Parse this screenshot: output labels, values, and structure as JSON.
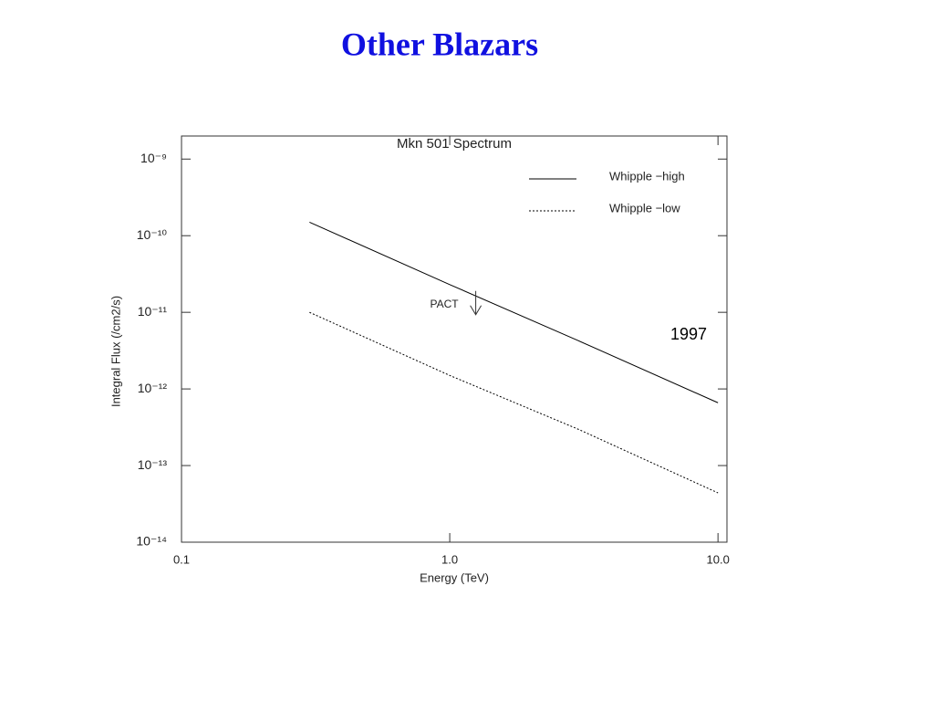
{
  "page_title": "Other Blazars",
  "chart_data": {
    "type": "line",
    "title": "Mkn 501 Spectrum",
    "x_label": "Energy (TeV)",
    "y_label": "Integral Flux (/cm2/s)",
    "log_x": true,
    "log_y": true,
    "legend": "upper right",
    "x": [
      0.3,
      1,
      3,
      10
    ],
    "series": [
      {
        "name": "Whipple −high",
        "color": "#000000",
        "style": "solid",
        "values": [
          1.5e-10,
          2.3e-11,
          4.3e-12,
          6.6e-13
        ]
      },
      {
        "name": "Whipple −low",
        "color": "#000000",
        "style": "dotted",
        "values": [
          1e-11,
          1.5e-12,
          3e-13,
          4.4e-14
        ]
      }
    ],
    "upper_limits": [
      {
        "label": "PACT",
        "x": 1.25,
        "value": 1.9e-11
      }
    ],
    "annotations": [
      "1997"
    ],
    "xlim": [
      0.1,
      10.8
    ],
    "xticks": [
      0.1,
      {
        "value": 1,
        "label": "1.0"
      },
      {
        "value": 10,
        "label": "10.0"
      }
    ],
    "ylim": [
      1e-14,
      2e-09
    ],
    "yticks": [
      {
        "value": 1e-14,
        "label": "10⁻¹⁴"
      },
      {
        "value": 1e-13,
        "label": "10⁻¹³"
      },
      {
        "value": 1e-12,
        "label": "10⁻¹²"
      },
      {
        "value": 1e-11,
        "label": "10⁻¹¹"
      },
      {
        "value": 1e-10,
        "label": "10⁻¹⁰"
      },
      {
        "value": 1e-09,
        "label": "10⁻⁹"
      }
    ]
  }
}
